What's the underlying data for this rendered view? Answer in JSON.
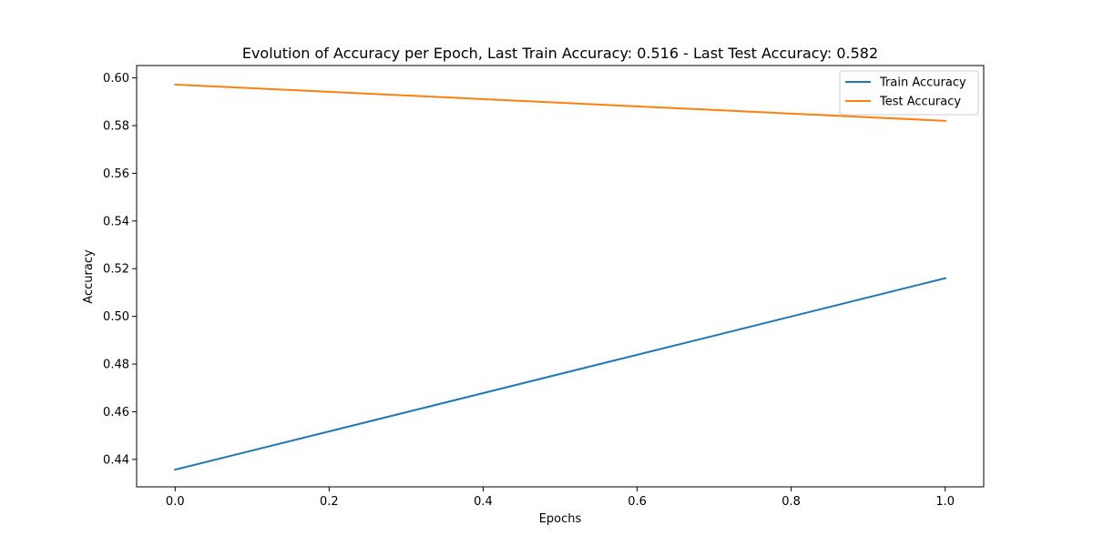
{
  "chart_data": {
    "type": "line",
    "title": "Evolution of Accuracy per Epoch,  Last Train Accuracy: 0.516 - Last Test Accuracy: 0.582",
    "xlabel": "Epochs",
    "ylabel": "Accuracy",
    "xlim": [
      -0.05,
      1.05
    ],
    "ylim": [
      0.4285,
      0.6052
    ],
    "x_ticks": [
      0.0,
      0.2,
      0.4,
      0.6,
      0.8,
      1.0
    ],
    "x_tick_labels": [
      "0.0",
      "0.2",
      "0.4",
      "0.6",
      "0.8",
      "1.0"
    ],
    "y_ticks": [
      0.44,
      0.46,
      0.48,
      0.5,
      0.52,
      0.54,
      0.56,
      0.58,
      0.6
    ],
    "y_tick_labels": [
      "0.44",
      "0.46",
      "0.48",
      "0.50",
      "0.52",
      "0.54",
      "0.56",
      "0.58",
      "0.60"
    ],
    "grid": false,
    "legend_position": "top-right",
    "series": [
      {
        "name": "Train Accuracy",
        "color": "#1f77b4",
        "x": [
          0,
          1
        ],
        "y": [
          0.4357,
          0.516
        ]
      },
      {
        "name": "Test Accuracy",
        "color": "#ff7f0e",
        "x": [
          0,
          1
        ],
        "y": [
          0.5972,
          0.582
        ]
      }
    ]
  }
}
